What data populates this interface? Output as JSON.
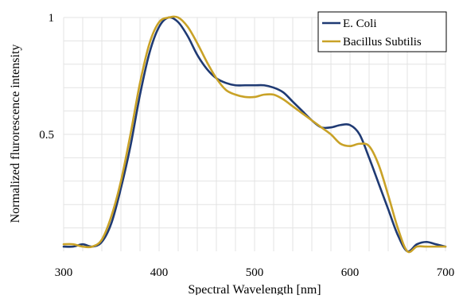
{
  "chart_data": {
    "type": "line",
    "title": "",
    "xlabel": "Spectral Wavelength [nm]",
    "ylabel": "Normalized flurorescence intensity",
    "xlim": [
      300,
      700
    ],
    "ylim": [
      0,
      1
    ],
    "x_ticks": [
      "300",
      "400",
      "500",
      "600",
      "700"
    ],
    "y_ticks": [
      "0.5",
      "1"
    ],
    "grid": true,
    "legend_position": "top-right",
    "series": [
      {
        "name": "E. Coli",
        "color": "#1f3a73",
        "x": [
          300,
          310,
          320,
          330,
          340,
          350,
          360,
          370,
          380,
          390,
          400,
          410,
          420,
          430,
          440,
          450,
          460,
          470,
          480,
          490,
          500,
          510,
          520,
          530,
          540,
          550,
          560,
          570,
          580,
          590,
          600,
          610,
          620,
          630,
          640,
          650,
          660,
          670,
          680,
          690,
          700
        ],
        "values": [
          0.02,
          0.02,
          0.03,
          0.02,
          0.04,
          0.12,
          0.27,
          0.45,
          0.67,
          0.85,
          0.96,
          1.0,
          0.98,
          0.92,
          0.84,
          0.78,
          0.74,
          0.72,
          0.71,
          0.71,
          0.71,
          0.71,
          0.7,
          0.68,
          0.64,
          0.6,
          0.56,
          0.53,
          0.53,
          0.54,
          0.54,
          0.5,
          0.4,
          0.29,
          0.18,
          0.07,
          0.0,
          0.03,
          0.04,
          0.03,
          0.02
        ]
      },
      {
        "name": "Bacillus Subtilis",
        "color": "#c9a227",
        "x": [
          300,
          310,
          320,
          330,
          340,
          350,
          360,
          370,
          380,
          390,
          400,
          410,
          420,
          430,
          440,
          450,
          460,
          470,
          480,
          490,
          500,
          510,
          520,
          530,
          540,
          550,
          560,
          570,
          580,
          590,
          600,
          610,
          620,
          630,
          640,
          650,
          660,
          670,
          680,
          690,
          700
        ],
        "values": [
          0.03,
          0.03,
          0.02,
          0.02,
          0.05,
          0.15,
          0.3,
          0.5,
          0.72,
          0.89,
          0.98,
          1.0,
          1.0,
          0.96,
          0.89,
          0.81,
          0.74,
          0.69,
          0.67,
          0.66,
          0.66,
          0.67,
          0.67,
          0.65,
          0.62,
          0.59,
          0.56,
          0.53,
          0.5,
          0.46,
          0.45,
          0.46,
          0.45,
          0.37,
          0.24,
          0.1,
          0.0,
          0.02,
          0.02,
          0.02,
          0.02
        ]
      }
    ]
  }
}
